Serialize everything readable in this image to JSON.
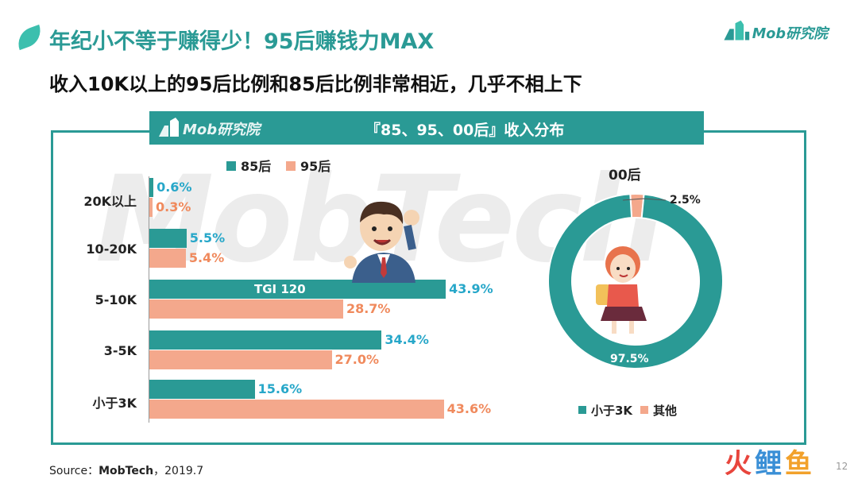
{
  "page": {
    "title": "年纪小不等于赚得少！95后赚钱力MAX",
    "subtitle": "收入10K以上的95后比例和85后比例非常相近，几乎不相上下",
    "logo_text": "Mob研究院",
    "watermark": "MobTech",
    "source_label": "Source：",
    "source_name": "MobTech",
    "source_date": "，2019.7",
    "page_number": "12",
    "brand_chars": [
      "火",
      "鲤",
      "鱼"
    ],
    "brand_colors": [
      "#e8453c",
      "#3a8fd6",
      "#f2a12b"
    ],
    "colors": {
      "teal": "#2a9a95",
      "salmon": "#f4a88c",
      "teal_text": "#27a7c9",
      "salmon_text": "#f08a5d"
    }
  },
  "chart_data": [
    {
      "type": "bar",
      "title": "『85、95、00后』收入分布",
      "categories": [
        "20K以上",
        "10-20K",
        "5-10K",
        "3-5K",
        "小于3K"
      ],
      "series": [
        {
          "name": "85后",
          "values": [
            0.6,
            5.5,
            43.9,
            34.4,
            15.6
          ],
          "labels": [
            "0.6%",
            "5.5%",
            "43.9%",
            "34.4%",
            "15.6%"
          ]
        },
        {
          "name": "95后",
          "values": [
            0.3,
            5.4,
            28.7,
            27.0,
            43.6
          ],
          "labels": [
            "0.3%",
            "5.4%",
            "28.7%",
            "27.0%",
            "43.6%"
          ]
        }
      ],
      "annotations": [
        {
          "category": "5-10K",
          "series": "85后",
          "text": "TGI 120"
        }
      ],
      "legend_position": "top",
      "grid": false
    },
    {
      "type": "pie",
      "title": "00后",
      "donut": true,
      "slices": [
        {
          "name": "小于3K",
          "value": 97.5,
          "label": "97.5%"
        },
        {
          "name": "其他",
          "value": 2.5,
          "label": "2.5%"
        }
      ],
      "legend_position": "bottom"
    }
  ]
}
